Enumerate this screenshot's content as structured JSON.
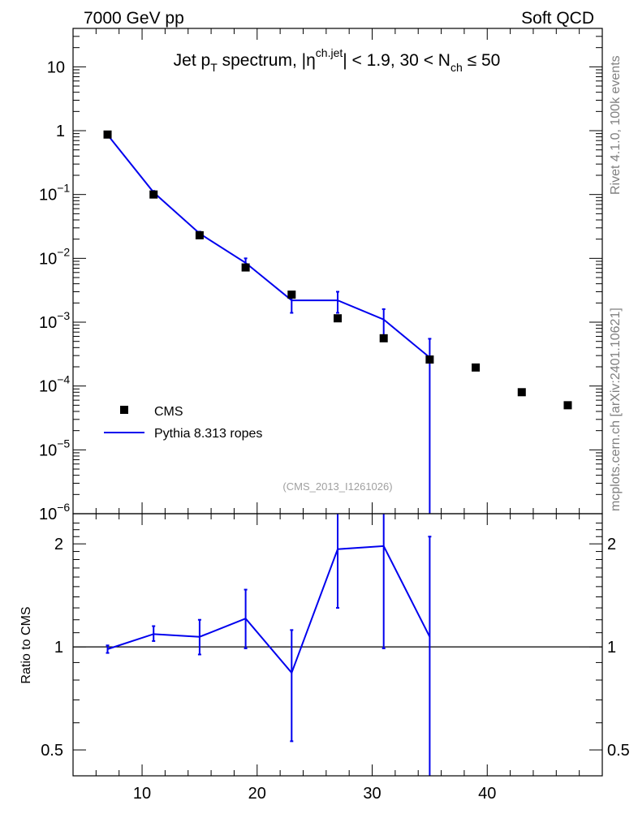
{
  "header": {
    "energy_label": "7000 GeV pp",
    "category_label": "Soft QCD"
  },
  "side_labels": {
    "rivet": "Rivet 4.1.0,  100k events",
    "mcplots": "mcplots.cern.ch [arXiv:2401.10621]"
  },
  "colors": {
    "mc": "#0000ee",
    "data": "#000000"
  },
  "chart_data": [
    {
      "type": "scatter",
      "title_parts": [
        "Jet p",
        "T",
        " spectrum, |",
        "η",
        "ch.jet",
        "| < 1.9, 30 < N",
        "ch",
        " ≤ 50"
      ],
      "analysis_tag": "(CMS_2013_I1261026)",
      "yscale": "log",
      "xlim": [
        4,
        50
      ],
      "ylim": [
        1e-06,
        40
      ],
      "yticks": [
        {
          "v": 1e-06,
          "base": "10",
          "exp": "−6"
        },
        {
          "v": 1e-05,
          "base": "10",
          "exp": "−5"
        },
        {
          "v": 0.0001,
          "base": "10",
          "exp": "−4"
        },
        {
          "v": 0.001,
          "base": "10",
          "exp": "−3"
        },
        {
          "v": 0.01,
          "base": "10",
          "exp": "−2"
        },
        {
          "v": 0.1,
          "base": "10",
          "exp": "−1"
        },
        {
          "v": 1,
          "base": "1",
          "exp": ""
        },
        {
          "v": 10,
          "base": "10",
          "exp": ""
        }
      ],
      "legend": [
        "CMS",
        "Pythia 8.313 ropes"
      ],
      "series": [
        {
          "name": "CMS",
          "style": "markers",
          "x": [
            7,
            11,
            15,
            19,
            23,
            27,
            31,
            35,
            39,
            43,
            47
          ],
          "y": [
            0.87,
            0.1,
            0.023,
            0.0072,
            0.0027,
            0.00115,
            0.00056,
            0.00026,
            0.000195,
            8e-05,
            5e-05
          ]
        },
        {
          "name": "Pythia 8.313 ropes",
          "style": "line",
          "x": [
            7,
            11,
            15,
            19,
            23,
            27,
            31,
            35
          ],
          "y": [
            0.86,
            0.108,
            0.0245,
            0.0085,
            0.0022,
            0.0022,
            0.0011,
            0.00028
          ],
          "err_lo": [
            0.83,
            0.102,
            0.0228,
            0.0072,
            0.0014,
            0.0014,
            0.0006,
            1e-07
          ],
          "err_hi": [
            0.89,
            0.114,
            0.0262,
            0.01,
            0.003,
            0.003,
            0.0016,
            0.00055
          ]
        }
      ]
    },
    {
      "type": "line",
      "ylabel": "Ratio to CMS",
      "yscale": "log",
      "xlim": [
        4,
        50
      ],
      "ylim": [
        0.42,
        2.45
      ],
      "xticks": [
        10,
        20,
        30,
        40
      ],
      "yticks": [
        0.5,
        1,
        2
      ],
      "reference": 1,
      "series": [
        {
          "name": "Pythia 8.313 ropes",
          "x": [
            7,
            11,
            15,
            19,
            23,
            27,
            31,
            35
          ],
          "y": [
            0.985,
            1.09,
            1.07,
            1.21,
            0.84,
            1.93,
            1.97,
            1.07
          ],
          "err_lo": [
            0.96,
            1.04,
            0.95,
            0.99,
            0.53,
            1.3,
            0.99,
            0.4
          ],
          "err_hi": [
            1.01,
            1.15,
            1.2,
            1.47,
            1.12,
            2.45,
            2.45,
            2.1
          ]
        }
      ]
    }
  ]
}
